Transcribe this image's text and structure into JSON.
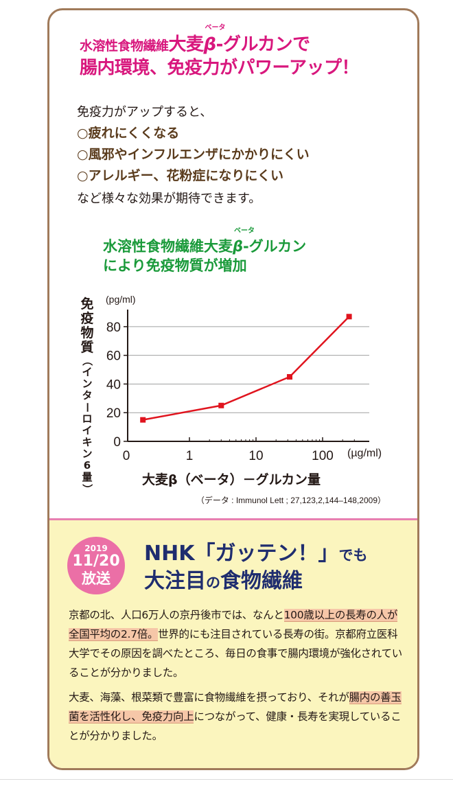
{
  "headline": {
    "line1_small": "水溶性食物繊維",
    "line1_big": "大麦",
    "beta": "β",
    "beta_ruby": "ベータ",
    "line1_tail": "-グルカンで",
    "line2": "腸内環境、免疫力がパワーアップ！"
  },
  "intro": {
    "lead": "免疫力がアップすると、",
    "benefits": [
      "○疲れにくくなる",
      "○風邪やインフルエンザにかかりにくい",
      "○アレルギー、花粉症になりにくい"
    ],
    "closing": "など様々な効果が期待できます。"
  },
  "chart_title": {
    "line1_pre": "水溶性食物繊維大麦",
    "beta": "β",
    "beta_ruby": "ベータ",
    "line1_tail": "-グルカン",
    "line2": "により免疫物質が増加"
  },
  "chart_data": {
    "type": "line",
    "xscale": "log",
    "xlabel": "大麦β（ベータ）－グルカン量",
    "x_unit": "(µg/ml)",
    "ylabel": "免疫物質",
    "ylabel_sub": "（インターロイキン6量）",
    "y_unit": "(pg/ml)",
    "x_ticks": [
      {
        "value": 0,
        "label": "0"
      },
      {
        "value": 1,
        "label": "1"
      },
      {
        "value": 10,
        "label": "10"
      },
      {
        "value": 100,
        "label": "100"
      }
    ],
    "y_ticks": [
      0,
      20,
      40,
      60,
      80
    ],
    "ylim": [
      0,
      90
    ],
    "grid": true,
    "series": [
      {
        "color": "#e0141e",
        "points": [
          {
            "x": 0.2,
            "y": 15
          },
          {
            "x": 3,
            "y": 25
          },
          {
            "x": 32,
            "y": 45
          },
          {
            "x": 250,
            "y": 87
          }
        ]
      }
    ],
    "source": "（データ : Immunol Lett ; 27,123,2,144–148,2009）"
  },
  "nhk": {
    "badge_year": "2019",
    "badge_date": "11/20",
    "badge_air": "放送",
    "title_a": "NHK「ガッテン！」",
    "title_de": "でも",
    "title_b1": "大注目",
    "title_no": "の",
    "title_b2": "食物繊維",
    "para1_a": "京都の北、人口6万人の京丹後市では、なんと",
    "para1_hl": "100歳以上の長寿の人が全国平均の2.7倍。",
    "para1_b": "世界的にも注目されている長寿の街。京都府立医科大学でその原因を調べたところ、毎日の食事で腸内環境が強化されていることが分かりました。",
    "para2_a": "大麦、海藻、根菜類で豊富に食物繊維を摂っており、それが",
    "para2_hl": "腸内の善玉菌を活性化し、免疫力向上",
    "para2_b": "につながって、健康・長寿を実現していることが分かりました。"
  },
  "colors": {
    "headline": "#d8177d",
    "chart_title": "#1a9a3a",
    "nhk_title": "#1f2d6f",
    "badge": "#eb6fa6",
    "panel_bg": "#fbf5be",
    "card_border": "#a07a5a"
  }
}
